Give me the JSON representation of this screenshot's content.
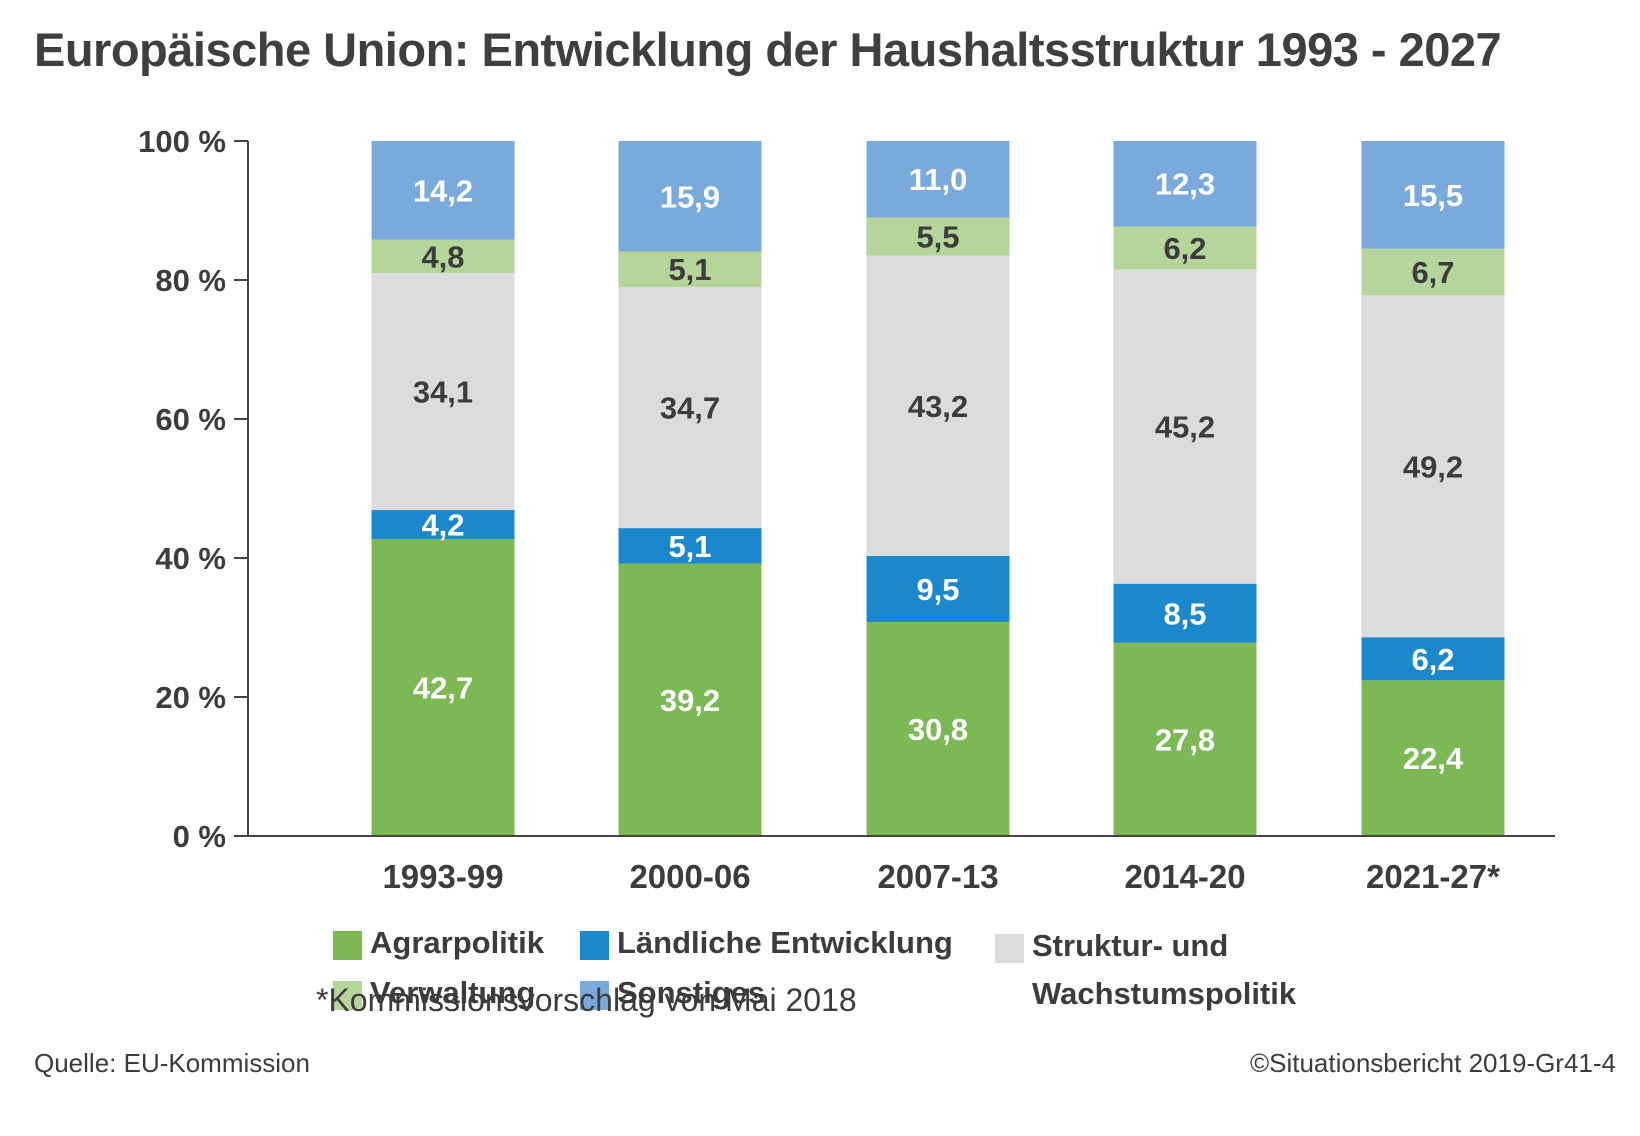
{
  "title": "Europäische Union: Entwicklung der Haushaltsstruktur 1993 - 2027",
  "legend": {
    "agrar": "Agrarpolitik",
    "laendlich": "Ländliche Entwicklung",
    "struktur_line1": "Struktur- und",
    "struktur_line2": "Wachstumspolitik",
    "verwaltung": "Verwaltung",
    "sonstiges": "Sonstiges"
  },
  "footnote": "*Kommissionsvorschlag von Mai 2018",
  "source": "Quelle: EU-Kommission",
  "copyright": "©Situationsbericht 2019-Gr41-4",
  "colors": {
    "agrar": "#7cb854",
    "laendlich": "#1b87cc",
    "struktur": "#dcdcdc",
    "verwaltung": "#b6d59a",
    "sonstiges": "#7aa9dc"
  },
  "chart_data": {
    "type": "bar",
    "stacked": true,
    "categories": [
      "1993-99",
      "2000-06",
      "2007-13",
      "2014-20",
      "2021-27*"
    ],
    "series": [
      {
        "key": "agrar",
        "name": "Agrarpolitik",
        "color": "#7cb854",
        "label_color": "#ffffff",
        "values": [
          42.7,
          39.2,
          30.8,
          27.8,
          22.4
        ],
        "labels": [
          "42,7",
          "39,2",
          "30,8",
          "27,8",
          "22,4"
        ]
      },
      {
        "key": "laendlich",
        "name": "Ländliche Entwicklung",
        "color": "#1b87cc",
        "label_color": "#ffffff",
        "values": [
          4.2,
          5.1,
          9.5,
          8.5,
          6.2
        ],
        "labels": [
          "4,2",
          "5,1",
          "9,5",
          "8,5",
          "6,2"
        ]
      },
      {
        "key": "struktur",
        "name": "Struktur- und Wachstumspolitik",
        "color": "#dcdcdc",
        "label_color": "#3c3c3c",
        "values": [
          34.1,
          34.7,
          43.2,
          45.2,
          49.2
        ],
        "labels": [
          "34,1",
          "34,7",
          "43,2",
          "45,2",
          "49,2"
        ]
      },
      {
        "key": "verwaltung",
        "name": "Verwaltung",
        "color": "#b6d59a",
        "label_color": "#3c3c3c",
        "values": [
          4.8,
          5.1,
          5.5,
          6.2,
          6.7
        ],
        "labels": [
          "4,8",
          "5,1",
          "5,5",
          "6,2",
          "6,7"
        ]
      },
      {
        "key": "sonstiges",
        "name": "Sonstiges",
        "color": "#7aa9dc",
        "label_color": "#ffffff",
        "values": [
          14.2,
          15.9,
          11.0,
          12.3,
          15.5
        ],
        "labels": [
          "14,2",
          "15,9",
          "11,0",
          "12,3",
          "15,5"
        ]
      }
    ],
    "yticks": [
      "0 %",
      "20 %",
      "40 %",
      "60 %",
      "80 %",
      "100 %"
    ],
    "ylim": [
      0,
      100
    ],
    "xlabel": "",
    "ylabel": "",
    "grid": false,
    "legend_position": "bottom"
  }
}
